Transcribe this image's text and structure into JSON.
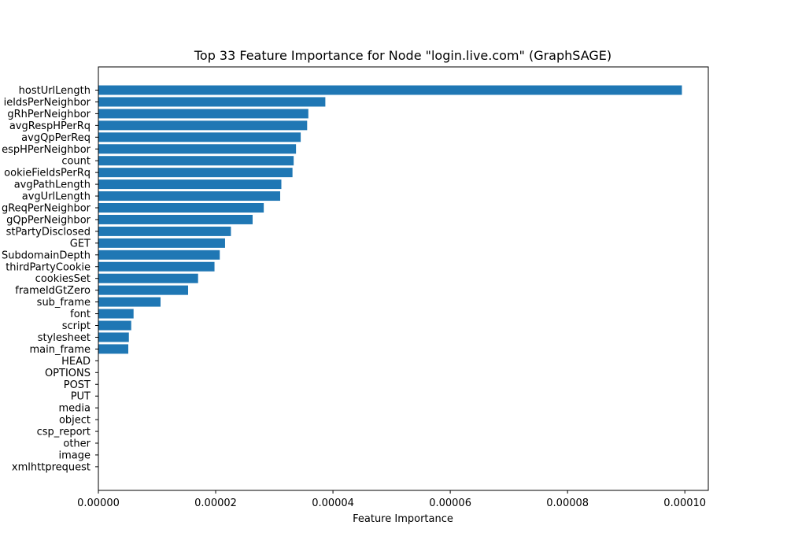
{
  "chart_data": {
    "type": "bar",
    "orientation": "horizontal",
    "title": "Top 33 Feature Importance for Node \"login.live.com\" (GraphSAGE)",
    "xlabel": "Feature Importance",
    "ylabel": "",
    "xlim": [
      0,
      0.000104
    ],
    "xticks": [
      0,
      2e-05,
      4e-05,
      6e-05,
      8e-05,
      0.0001
    ],
    "xtick_labels": [
      "0.00000",
      "0.00002",
      "0.00004",
      "0.00006",
      "0.00008",
      "0.00010"
    ],
    "bar_color": "#1f77b4",
    "grid": false,
    "categories": [
      "hostUrlLength",
      "ieldsPerNeighbor",
      "gRhPerNeighbor",
      "avgRespHPerRq",
      "avgQpPerReq",
      "espHPerNeighbor",
      "count",
      "ookieFieldsPerRq",
      "avgPathLength",
      "avgUrlLength",
      "gReqPerNeighbor",
      "gQpPerNeighbor",
      "stPartyDisclosed",
      "GET",
      "SubdomainDepth",
      "thirdPartyCookie",
      "cookiesSet",
      "frameIdGtZero",
      "sub_frame",
      "font",
      "script",
      "stylesheet",
      "main_frame",
      "HEAD",
      "OPTIONS",
      "POST",
      "PUT",
      "media",
      "object",
      "csp_report",
      "other",
      "image",
      "xmlhttprequest"
    ],
    "values": [
      9.95e-05,
      3.87e-05,
      3.58e-05,
      3.56e-05,
      3.45e-05,
      3.37e-05,
      3.33e-05,
      3.31e-05,
      3.12e-05,
      3.1e-05,
      2.82e-05,
      2.63e-05,
      2.26e-05,
      2.16e-05,
      2.07e-05,
      1.98e-05,
      1.7e-05,
      1.53e-05,
      1.06e-05,
      6e-06,
      5.6e-06,
      5.2e-06,
      5.1e-06,
      0,
      0,
      0,
      0,
      0,
      0,
      0,
      0,
      0,
      0
    ]
  }
}
